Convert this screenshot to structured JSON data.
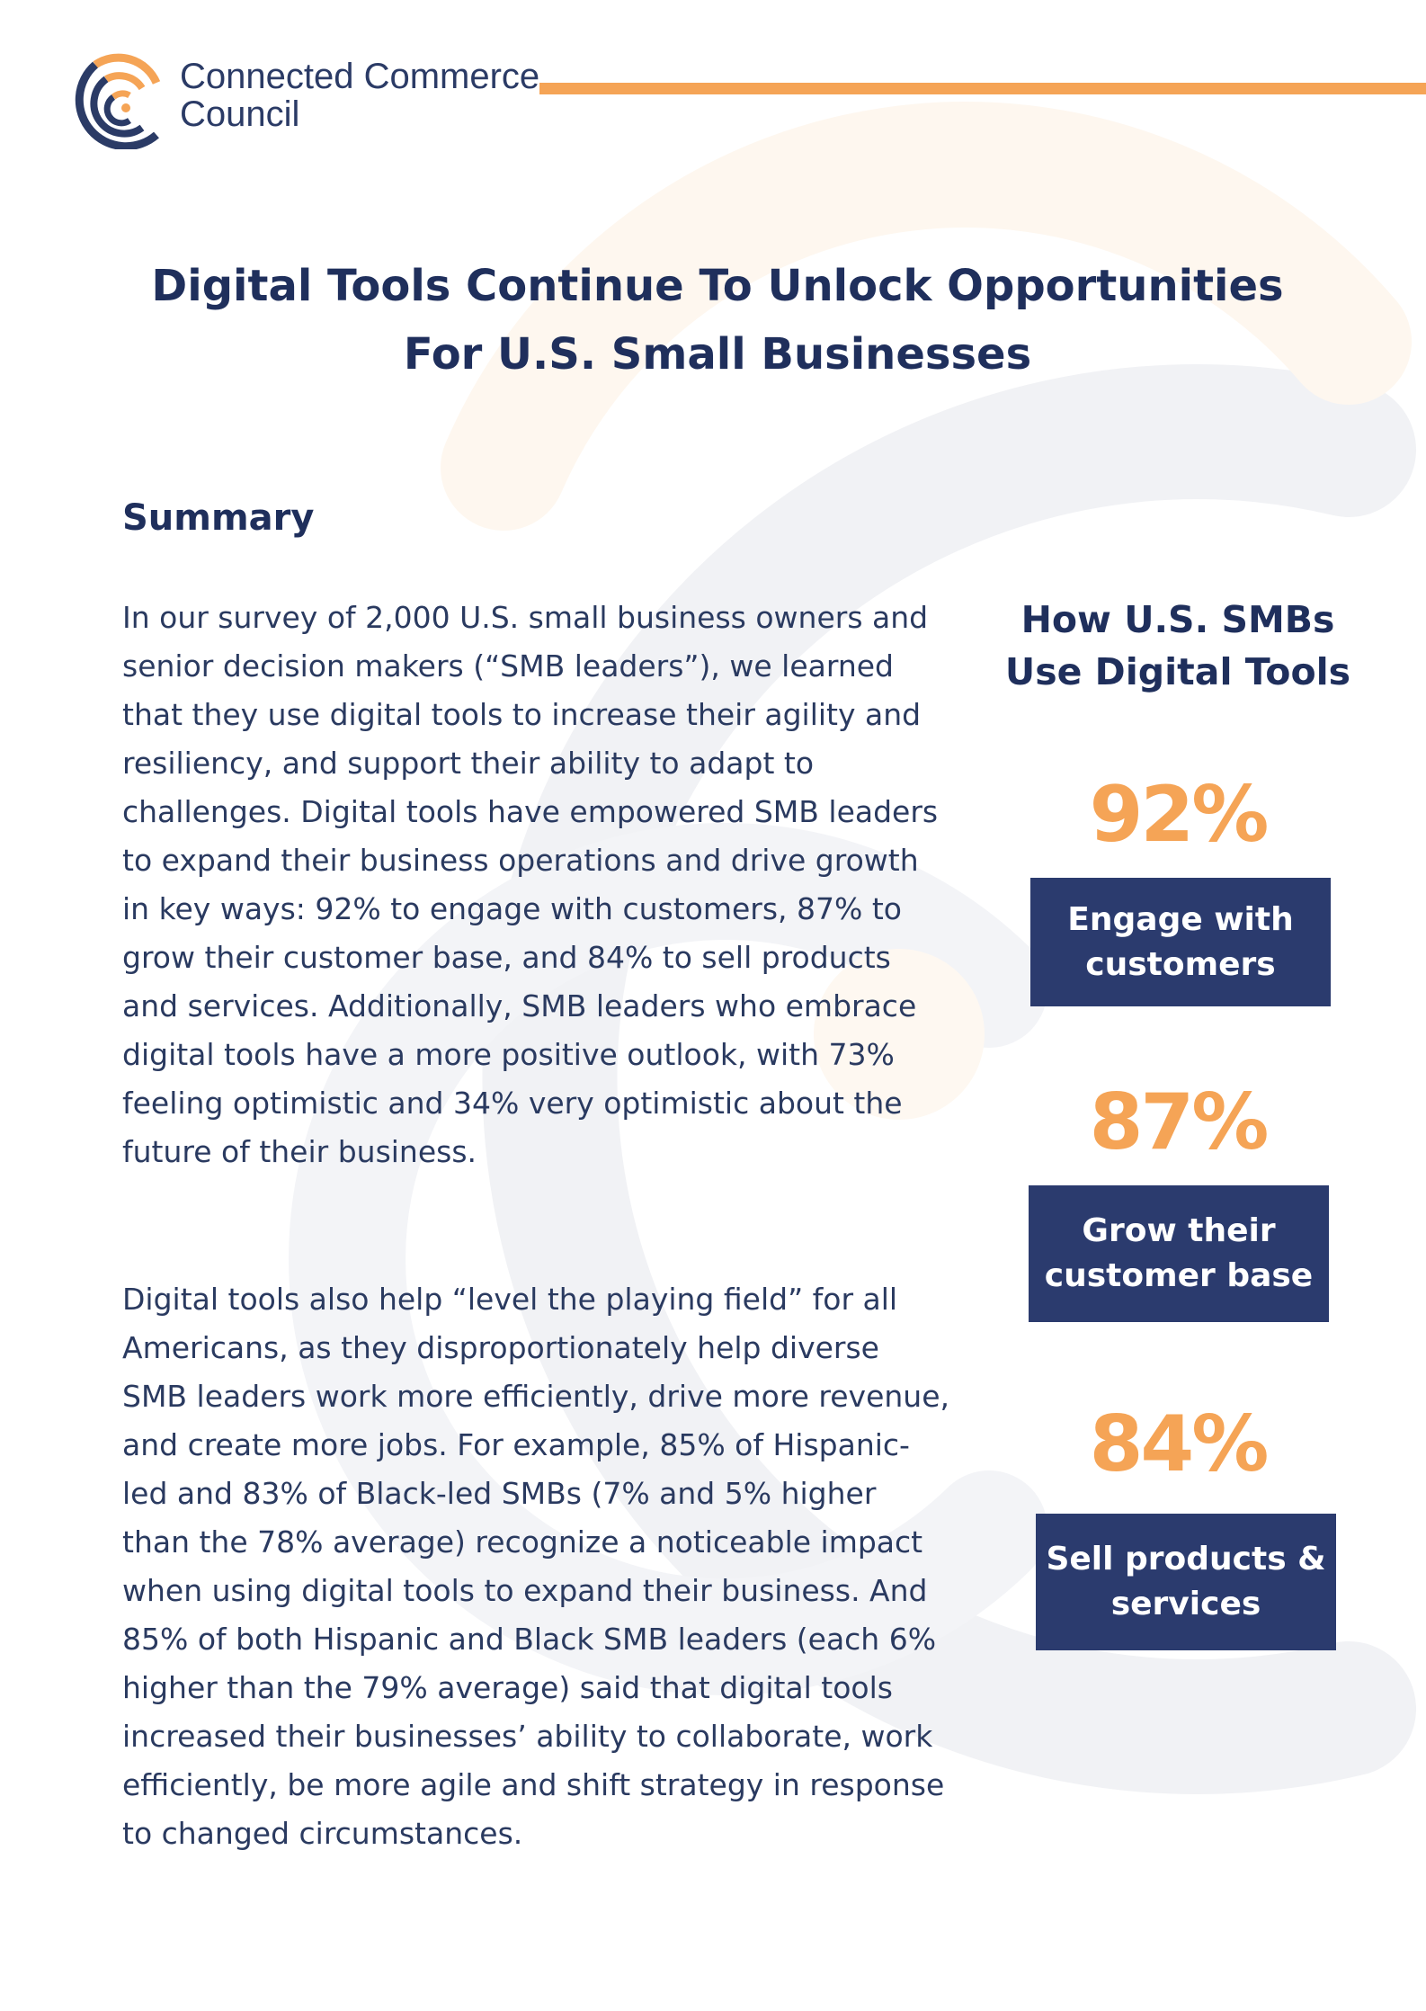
{
  "brand": {
    "logo_name_line1": "Connected Commerce",
    "logo_name_line2": "Council",
    "accent_orange": "#f5a456",
    "navy": "#2b3b6e",
    "logo_icon": "signal-arcs-icon"
  },
  "title": {
    "line1": "Digital Tools Continue To Unlock Opportunities",
    "line2": "For U.S. Small Businesses"
  },
  "summary": {
    "heading": "Summary",
    "paragraph1": "In our survey of 2,000 U.S. small business owners and senior decision makers (“SMB leaders”), we learned that they use digital tools to increase their agility and resiliency, and support their ability to adapt to challenges. Digital tools have empowered SMB leaders to expand their business operations and drive growth in key ways: 92% to engage with customers, 87% to grow their customer base, and 84% to sell products and services. Additionally, SMB leaders who embrace digital tools have a more positive outlook, with 73% feeling optimistic and 34% very optimistic about the future of their business.",
    "paragraph2": "Digital tools also help “level the playing field” for all Americans, as they disproportionately help diverse SMB leaders work more efficiently, drive more revenue, and create more jobs. For example, 85% of Hispanic-led and 83% of Black-led SMBs (7% and 5% higher than the 78% average) recognize a noticeable impact when using digital tools to expand their business. And 85% of both Hispanic and Black SMB leaders (each 6% higher than the 79% average) said that digital tools increased their businesses’ ability to collaborate, work efficiently, be more agile and shift strategy in response to changed circumstances."
  },
  "sidebar": {
    "title_line1": "How U.S. SMBs",
    "title_line2": "Use Digital Tools",
    "stats": [
      {
        "value": "92%",
        "label_line1": "Engage with",
        "label_line2": "customers"
      },
      {
        "value": "87%",
        "label_line1": "Grow their",
        "label_line2": "customer base"
      },
      {
        "value": "84%",
        "label_line1": "Sell products &",
        "label_line2": "services"
      }
    ]
  }
}
